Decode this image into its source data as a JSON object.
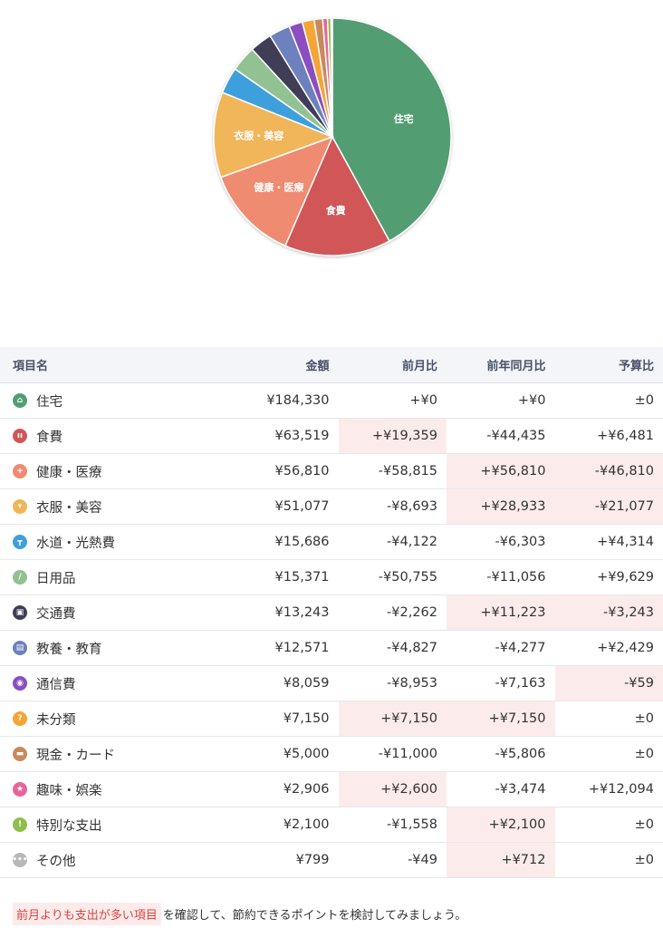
{
  "chart_data": {
    "type": "pie",
    "title": "",
    "start": "top",
    "direction": "clockwise",
    "slices": [
      {
        "label": "住宅",
        "value": 184330,
        "color": "#539d73",
        "show_label": true
      },
      {
        "label": "食費",
        "value": 63519,
        "color": "#d05759",
        "show_label": true
      },
      {
        "label": "健康・医療",
        "value": 56810,
        "color": "#ef8b70",
        "show_label": true
      },
      {
        "label": "衣服・美容",
        "value": 51077,
        "color": "#f1b55a",
        "show_label": true
      },
      {
        "label": "水道・光熱費",
        "value": 15686,
        "color": "#3ea0dc",
        "show_label": false
      },
      {
        "label": "日用品",
        "value": 15371,
        "color": "#92c192",
        "show_label": false
      },
      {
        "label": "交通費",
        "value": 13243,
        "color": "#3f3d57",
        "show_label": false
      },
      {
        "label": "教養・教育",
        "value": 12571,
        "color": "#6d81bf",
        "show_label": false
      },
      {
        "label": "通信費",
        "value": 8059,
        "color": "#8b4dc0",
        "show_label": false
      },
      {
        "label": "未分類",
        "value": 7150,
        "color": "#f5a536",
        "show_label": false
      },
      {
        "label": "現金・カード",
        "value": 5000,
        "color": "#c8895c",
        "show_label": false
      },
      {
        "label": "趣味・娯楽",
        "value": 2906,
        "color": "#e5679a",
        "show_label": false
      },
      {
        "label": "特別な支出",
        "value": 2100,
        "color": "#8fbe4d",
        "show_label": false
      },
      {
        "label": "その他",
        "value": 799,
        "color": "#b8b8b8",
        "show_label": false
      }
    ]
  },
  "table": {
    "headers": {
      "name": "項目名",
      "amount": "金額",
      "prev_month": "前月比",
      "prev_year": "前年同月比",
      "budget": "予算比"
    },
    "rows": [
      {
        "icon": "house-icon",
        "glyph": "⌂",
        "icon_color": "#539d73",
        "name": "住宅",
        "amount": "¥184,330",
        "prev_month": {
          "text": "+¥0",
          "highlight": false
        },
        "prev_year": {
          "text": "+¥0",
          "highlight": false
        },
        "budget": {
          "text": "±0",
          "highlight": false
        }
      },
      {
        "icon": "utensils-icon",
        "glyph": "ıı",
        "icon_color": "#d05759",
        "name": "食費",
        "amount": "¥63,519",
        "prev_month": {
          "text": "+¥19,359",
          "highlight": true
        },
        "prev_year": {
          "text": "-¥44,435",
          "highlight": false
        },
        "budget": {
          "text": "+¥6,481",
          "highlight": false
        }
      },
      {
        "icon": "medical-cross-icon",
        "glyph": "+",
        "icon_color": "#ef8b70",
        "name": "健康・医療",
        "amount": "¥56,810",
        "prev_month": {
          "text": "-¥58,815",
          "highlight": false
        },
        "prev_year": {
          "text": "+¥56,810",
          "highlight": true
        },
        "budget": {
          "text": "-¥46,810",
          "highlight": true
        }
      },
      {
        "icon": "shirt-icon",
        "glyph": "▾",
        "icon_color": "#f1b55a",
        "name": "衣服・美容",
        "amount": "¥51,077",
        "prev_month": {
          "text": "-¥8,693",
          "highlight": false
        },
        "prev_year": {
          "text": "+¥28,933",
          "highlight": true
        },
        "budget": {
          "text": "-¥21,077",
          "highlight": true
        }
      },
      {
        "icon": "faucet-icon",
        "glyph": "┳",
        "icon_color": "#3ea0dc",
        "name": "水道・光熱費",
        "amount": "¥15,686",
        "prev_month": {
          "text": "-¥4,122",
          "highlight": false
        },
        "prev_year": {
          "text": "-¥6,303",
          "highlight": false
        },
        "budget": {
          "text": "+¥4,314",
          "highlight": false
        }
      },
      {
        "icon": "tube-icon",
        "glyph": "/",
        "icon_color": "#92c192",
        "name": "日用品",
        "amount": "¥15,371",
        "prev_month": {
          "text": "-¥50,755",
          "highlight": false
        },
        "prev_year": {
          "text": "-¥11,056",
          "highlight": false
        },
        "budget": {
          "text": "+¥9,629",
          "highlight": false
        }
      },
      {
        "icon": "train-icon",
        "glyph": "▣",
        "icon_color": "#3f3d57",
        "name": "交通費",
        "amount": "¥13,243",
        "prev_month": {
          "text": "-¥2,262",
          "highlight": false
        },
        "prev_year": {
          "text": "+¥11,223",
          "highlight": true
        },
        "budget": {
          "text": "-¥3,243",
          "highlight": true
        }
      },
      {
        "icon": "book-icon",
        "glyph": "▤",
        "icon_color": "#6d81bf",
        "name": "教養・教育",
        "amount": "¥12,571",
        "prev_month": {
          "text": "-¥4,827",
          "highlight": false
        },
        "prev_year": {
          "text": "-¥4,277",
          "highlight": false
        },
        "budget": {
          "text": "+¥2,429",
          "highlight": false
        }
      },
      {
        "icon": "antenna-icon",
        "glyph": "◉",
        "icon_color": "#8b4dc0",
        "name": "通信費",
        "amount": "¥8,059",
        "prev_month": {
          "text": "-¥8,953",
          "highlight": false
        },
        "prev_year": {
          "text": "-¥7,163",
          "highlight": false
        },
        "budget": {
          "text": "-¥59",
          "highlight": true
        }
      },
      {
        "icon": "question-icon",
        "glyph": "?",
        "icon_color": "#f5a536",
        "name": "未分類",
        "amount": "¥7,150",
        "prev_month": {
          "text": "+¥7,150",
          "highlight": true
        },
        "prev_year": {
          "text": "+¥7,150",
          "highlight": true
        },
        "budget": {
          "text": "±0",
          "highlight": false
        }
      },
      {
        "icon": "wallet-icon",
        "glyph": "▬",
        "icon_color": "#c8895c",
        "name": "現金・カード",
        "amount": "¥5,000",
        "prev_month": {
          "text": "-¥11,000",
          "highlight": false
        },
        "prev_year": {
          "text": "-¥5,806",
          "highlight": false
        },
        "budget": {
          "text": "±0",
          "highlight": false
        }
      },
      {
        "icon": "star-icon",
        "glyph": "★",
        "icon_color": "#e5679a",
        "name": "趣味・娯楽",
        "amount": "¥2,906",
        "prev_month": {
          "text": "+¥2,600",
          "highlight": true
        },
        "prev_year": {
          "text": "-¥3,474",
          "highlight": false
        },
        "budget": {
          "text": "+¥12,094",
          "highlight": false
        }
      },
      {
        "icon": "exclamation-icon",
        "glyph": "!",
        "icon_color": "#8fbe4d",
        "name": "特別な支出",
        "amount": "¥2,100",
        "prev_month": {
          "text": "-¥1,558",
          "highlight": false
        },
        "prev_year": {
          "text": "+¥2,100",
          "highlight": true
        },
        "budget": {
          "text": "±0",
          "highlight": false
        }
      },
      {
        "icon": "ellipsis-icon",
        "glyph": "•••",
        "icon_color": "#b8b8b8",
        "name": "その他",
        "amount": "¥799",
        "prev_month": {
          "text": "-¥49",
          "highlight": false
        },
        "prev_year": {
          "text": "+¥712",
          "highlight": true
        },
        "budget": {
          "text": "±0",
          "highlight": false
        }
      }
    ]
  },
  "footer": {
    "highlight_text": "前月よりも支出が多い項目",
    "rest_text": "を確認して、節約できるポイントを検討してみましょう。"
  }
}
